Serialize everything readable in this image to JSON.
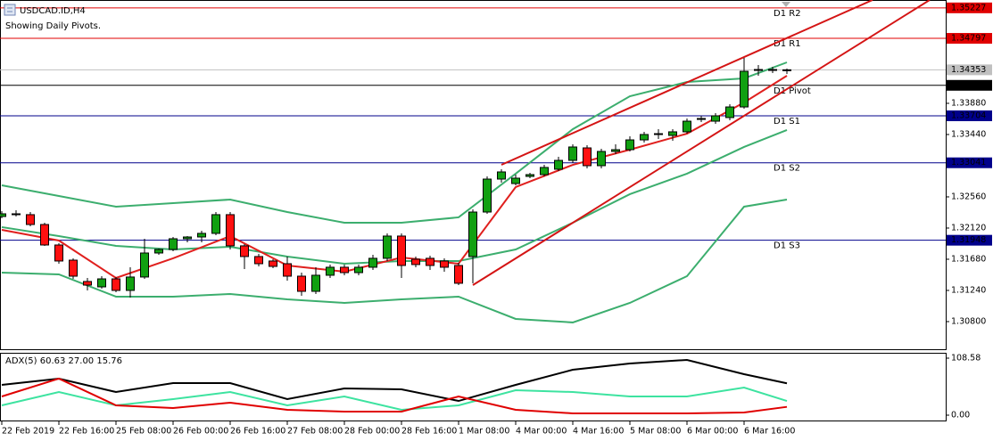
{
  "chart_data": [
    {
      "type": "candlestick",
      "title": "USDCAD.ID,H4",
      "subtitle": "Showing Daily Pivots.",
      "categories": [
        "22 Feb 2019",
        null,
        null,
        null,
        "22 Feb 16:00",
        null,
        null,
        null,
        "25 Feb 08:00",
        null,
        null,
        null,
        "26 Feb 00:00",
        null,
        null,
        null,
        "26 Feb 16:00",
        null,
        null,
        null,
        "27 Feb 08:00",
        null,
        null,
        null,
        "28 Feb 00:00",
        null,
        null,
        null,
        "28 Feb 16:00",
        null,
        null,
        null,
        "1 Mar 08:00",
        null,
        null,
        null,
        "4 Mar 00:00",
        null,
        null,
        null,
        "4 Mar 16:00",
        null,
        null,
        null,
        "5 Mar 08:00",
        null,
        null,
        null,
        "6 Mar 00:00",
        null,
        null,
        null,
        "6 Mar 16:00",
        null,
        null,
        null
      ],
      "open": [
        1.32283,
        1.32321,
        1.32309,
        1.3217,
        1.31881,
        1.31667,
        1.31366,
        1.3129,
        1.31403,
        1.3124,
        1.31429,
        1.31768,
        1.31818,
        1.31969,
        1.31994,
        1.32045,
        1.32309,
        1.31869,
        1.31718,
        1.31655,
        1.31617,
        1.31441,
        1.31227,
        1.31454,
        1.31567,
        1.31491,
        1.31567,
        1.31693,
        1.32007,
        1.3168,
        1.31693,
        1.31655,
        1.31592,
        1.31718,
        1.32346,
        1.32811,
        1.32748,
        1.32849,
        1.32874,
        1.3295,
        1.33075,
        1.33251,
        1.33,
        1.33201,
        1.33226,
        1.33364,
        1.3344,
        1.33427,
        1.33478,
        1.33653,
        1.33628,
        1.33679,
        1.33829,
        1.34357,
        1.34357,
        1.34345
      ],
      "high": [
        1.32359,
        1.32371,
        1.32346,
        1.32195,
        1.31906,
        1.31693,
        1.31416,
        1.31441,
        1.31429,
        1.31567,
        1.31969,
        1.31831,
        1.31994,
        1.32007,
        1.32082,
        1.32346,
        1.32346,
        1.31894,
        1.31755,
        1.3168,
        1.31718,
        1.31491,
        1.31567,
        1.31605,
        1.31605,
        1.31605,
        1.31743,
        1.32045,
        1.32045,
        1.31718,
        1.3173,
        1.31693,
        1.3163,
        1.32384,
        1.32849,
        1.3295,
        1.32874,
        1.32899,
        1.33012,
        1.33126,
        1.33302,
        1.33289,
        1.33239,
        1.33302,
        1.33415,
        1.33478,
        1.33515,
        1.33515,
        1.33666,
        1.33704,
        1.33741,
        1.33867,
        1.34521,
        1.3442,
        1.34395,
        1.3437
      ],
      "low": [
        1.32258,
        1.32283,
        1.32145,
        1.31869,
        1.31617,
        1.31403,
        1.3124,
        1.31265,
        1.31215,
        1.31139,
        1.31403,
        1.31743,
        1.31793,
        1.31919,
        1.31919,
        1.32019,
        1.31818,
        1.31542,
        1.31579,
        1.31554,
        1.31378,
        1.31165,
        1.3119,
        1.31416,
        1.31454,
        1.31454,
        1.31529,
        1.31655,
        1.31416,
        1.31567,
        1.31529,
        1.31504,
        1.31315,
        1.31341,
        1.32321,
        1.32761,
        1.32723,
        1.32824,
        1.32849,
        1.32924,
        1.33038,
        1.32962,
        1.32962,
        1.33163,
        1.33201,
        1.33327,
        1.33377,
        1.33352,
        1.33452,
        1.33616,
        1.33591,
        1.33641,
        1.33804,
        1.34269,
        1.34307,
        1.34295
      ],
      "close": [
        1.32321,
        1.32309,
        1.3217,
        1.31881,
        1.31655,
        1.31441,
        1.31315,
        1.31403,
        1.3124,
        1.31429,
        1.31768,
        1.31818,
        1.31969,
        1.31994,
        1.32045,
        1.32309,
        1.31869,
        1.31718,
        1.31617,
        1.31579,
        1.31441,
        1.31227,
        1.31454,
        1.31567,
        1.31491,
        1.31567,
        1.31693,
        1.32007,
        1.31592,
        1.31605,
        1.31592,
        1.31567,
        1.31341,
        1.32346,
        1.32811,
        1.32912,
        1.32824,
        1.32874,
        1.32975,
        1.33075,
        1.33264,
        1.33,
        1.33201,
        1.33226,
        1.33364,
        1.3344,
        1.33452,
        1.33478,
        1.33628,
        1.33666,
        1.33704,
        1.33829,
        1.34332,
        1.34345,
        1.34345,
        1.34353
      ],
      "up_color": "#11a011",
      "down_color": "#ff1010",
      "ylim": [
        1.3041,
        1.35338
      ],
      "yticks": [
        {
          "value": 1.3388,
          "label": "1.33880"
        },
        {
          "value": 1.3344,
          "label": "1.33440"
        },
        {
          "value": 1.3256,
          "label": "1.32560"
        },
        {
          "value": 1.3212,
          "label": "1.32120"
        },
        {
          "value": 1.3168,
          "label": "1.31680"
        },
        {
          "value": 1.3124,
          "label": "1.31240"
        },
        {
          "value": 1.308,
          "label": "1.30800"
        }
      ],
      "overlays": [
        {
          "color": "#3cae6e",
          "x": [
            0,
            4,
            8,
            12,
            16,
            20,
            24,
            28,
            32,
            36,
            40,
            44,
            48,
            52,
            55
          ],
          "values": [
            1.32723,
            1.32572,
            1.32422,
            1.32472,
            1.32522,
            1.32346,
            1.32195,
            1.32195,
            1.32271,
            1.32887,
            1.33515,
            1.3398,
            1.34181,
            1.34232,
            1.34458
          ]
        },
        {
          "color": "#3cae6e",
          "x": [
            0,
            4,
            8,
            12,
            16,
            20,
            24,
            28,
            32,
            36,
            40,
            44,
            48,
            52,
            55
          ],
          "values": [
            1.32133,
            1.32007,
            1.31869,
            1.31818,
            1.31856,
            1.31718,
            1.31617,
            1.31655,
            1.31655,
            1.31818,
            1.32195,
            1.32598,
            1.32887,
            1.33264,
            1.33503
          ]
        },
        {
          "color": "#3cae6e",
          "x": [
            0,
            4,
            8,
            12,
            16,
            20,
            24,
            28,
            32,
            36,
            40,
            44,
            48,
            52,
            55
          ],
          "values": [
            1.31491,
            1.31466,
            1.31152,
            1.31152,
            1.3119,
            1.31114,
            1.31064,
            1.31114,
            1.31152,
            1.30838,
            1.30788,
            1.31064,
            1.31441,
            1.32422,
            1.32522
          ]
        },
        {
          "color": "#e0201e",
          "x": [
            0,
            4,
            8,
            12,
            16,
            20,
            24,
            28,
            32,
            36,
            40,
            44,
            48,
            52,
            55
          ],
          "values": [
            1.32095,
            1.31944,
            1.31416,
            1.31693,
            1.32007,
            1.31592,
            1.31504,
            1.31705,
            1.31617,
            1.32698,
            1.33012,
            1.33226,
            1.33452,
            1.33892,
            1.34269
          ]
        }
      ],
      "trendlines": [
        {
          "color": "#d41414",
          "x": [
            35,
            61
          ],
          "values": [
            1.33012,
            1.35338
          ]
        },
        {
          "color": "#d41414",
          "x": [
            33,
            65
          ],
          "values": [
            1.31315,
            1.35338
          ]
        }
      ],
      "pivots": [
        {
          "label": "D1 R2",
          "value": 1.35227,
          "color": "#e00000"
        },
        {
          "label": "D1 R1",
          "value": 1.34797,
          "color": "#e00000"
        },
        {
          "label": "D1 Pivot",
          "value": 1.34134,
          "color": "#000000"
        },
        {
          "label": "D1 S1",
          "value": 1.33704,
          "color": "#00008b"
        },
        {
          "label": "D1 S2",
          "value": 1.33041,
          "color": "#00008b"
        },
        {
          "label": "D1 S3",
          "value": 1.31948,
          "color": "#00008b"
        }
      ],
      "current_price": {
        "value": 1.34353,
        "color": "#c0c0c0"
      }
    },
    {
      "type": "line",
      "title": "ADX(5) 60.63 27.00 15.76",
      "x": [
        0,
        4,
        8,
        12,
        16,
        20,
        24,
        28,
        32,
        36,
        40,
        44,
        48,
        52,
        55
      ],
      "series": [
        {
          "color": "#000000",
          "values": [
            57.7,
            69.6,
            44.1,
            61.1,
            61.1,
            30.5,
            50.9,
            49.2,
            27.1,
            57.7,
            86.5,
            98.4,
            105.2,
            78.0,
            60.6
          ]
        },
        {
          "color": "#3de3a0",
          "values": [
            18.7,
            44.1,
            18.7,
            30.5,
            44.1,
            18.7,
            35.6,
            10.2,
            18.7,
            47.5,
            44.1,
            35.6,
            35.6,
            52.6,
            27.0
          ]
        },
        {
          "color": "#e00000",
          "values": [
            35.6,
            69.6,
            18.7,
            13.6,
            23.8,
            10.2,
            6.8,
            6.8,
            35.6,
            10.2,
            3.4,
            3.4,
            3.4,
            5.1,
            15.8
          ]
        }
      ],
      "ylim": [
        0,
        108.58
      ],
      "yticks": [
        108.58,
        {
          "value": 0,
          "label": "0.00"
        }
      ]
    }
  ]
}
